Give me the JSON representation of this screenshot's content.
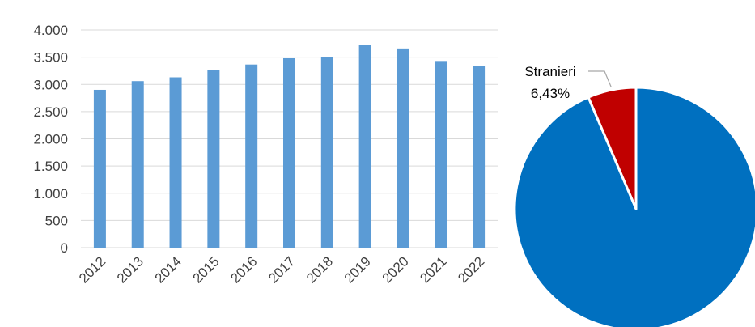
{
  "chart_data": [
    {
      "type": "bar",
      "categories": [
        "2012",
        "2013",
        "2014",
        "2015",
        "2016",
        "2017",
        "2018",
        "2019",
        "2020",
        "2021",
        "2022"
      ],
      "values": [
        2900,
        3060,
        3130,
        3265,
        3365,
        3480,
        3505,
        3730,
        3660,
        3430,
        3340
      ],
      "title": "",
      "xlabel": "",
      "ylabel": "",
      "ylim": [
        0,
        4000
      ],
      "yticks": [
        0,
        500,
        1000,
        1500,
        2000,
        2500,
        3000,
        3500,
        4000
      ],
      "ytick_labels": [
        "0",
        "500",
        "1.000",
        "1.500",
        "2.000",
        "2.500",
        "3.000",
        "3.500",
        "4.000"
      ],
      "grid": true,
      "bar_color": "#5B9BD5",
      "legend": "none"
    },
    {
      "type": "pie",
      "slices": [
        {
          "value": 93.57,
          "color": "#0070C0"
        },
        {
          "label": "Stranieri",
          "value": 6.43,
          "value_label": "6,43%",
          "color": "#C00000"
        }
      ],
      "legend": "none"
    }
  ]
}
